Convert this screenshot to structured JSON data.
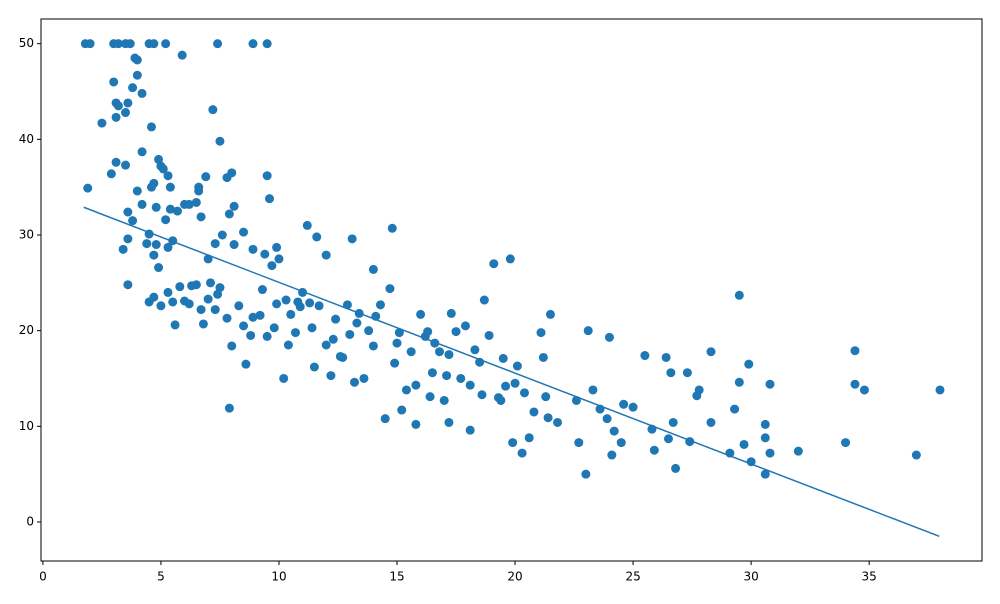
{
  "chart_data": {
    "type": "scatter",
    "xlim": [
      -0.08,
      39.78
    ],
    "ylim": [
      -4.08,
      52.58
    ],
    "xticks": [
      0,
      5,
      10,
      15,
      20,
      25,
      30,
      35
    ],
    "yticks": [
      0,
      10,
      20,
      30,
      40,
      50
    ],
    "series": [
      {
        "type": "scatter",
        "color": "#1f77b4",
        "x": [
          1.8,
          2.0,
          3.0,
          3.2,
          3.5,
          3.7,
          4.5,
          4.7,
          5.2,
          7.4,
          8.9,
          9.5,
          1.9,
          2.5,
          2.9,
          3.0,
          3.1,
          3.1,
          3.2,
          3.1,
          3.4,
          3.5,
          3.5,
          3.6,
          3.6,
          3.6,
          3.6,
          3.8,
          3.8,
          3.9,
          4.0,
          4.0,
          4.0,
          4.2,
          4.2,
          4.2,
          4.4,
          4.5,
          4.6,
          4.6,
          4.7,
          4.8,
          4.9,
          4.7,
          4.8,
          4.9,
          5.0,
          5.1,
          5.2,
          5.3,
          5.4,
          5.3,
          5.5,
          5.4,
          5.9,
          5.7,
          6.0,
          6.2,
          6.5,
          6.6,
          6.6,
          6.7,
          6.9,
          7.2,
          7.5,
          7.8,
          8.0,
          7.9,
          8.1,
          9.5,
          9.6,
          7.0,
          7.3,
          7.6,
          8.1,
          8.5,
          8.9,
          9.4,
          9.9,
          10.0,
          9.7,
          11.2,
          11.6,
          12.0,
          13.1,
          14.8,
          14.0,
          4.5,
          4.7,
          5.0,
          5.3,
          5.5,
          5.6,
          5.8,
          6.2,
          6.5,
          6.8,
          7.0,
          7.3,
          7.5,
          7.8,
          8.0,
          7.9,
          8.6,
          8.5,
          8.8,
          9.2,
          9.5,
          9.9,
          10.2,
          10.4,
          10.5,
          10.8,
          11.0,
          11.4,
          11.5,
          11.7,
          12.0,
          12.2,
          12.4,
          12.6,
          12.9,
          13.0,
          13.2,
          13.4,
          13.6,
          13.8,
          14.0,
          14.3,
          14.5,
          14.7,
          14.9,
          15.0,
          15.2,
          15.4,
          15.6,
          15.8,
          16.0,
          16.2,
          16.4,
          16.5,
          16.8,
          17.0,
          17.2,
          17.3,
          17.5,
          17.7,
          17.9,
          18.1,
          18.3,
          18.6,
          18.7,
          18.9,
          19.1,
          19.4,
          19.6,
          19.8,
          19.9,
          20.1,
          20.3,
          20.6,
          20.8,
          21.1,
          21.3,
          21.4,
          21.5,
          21.8,
          22.6,
          22.7,
          23.0,
          23.1,
          23.3,
          23.6,
          23.9,
          24.0,
          24.1,
          24.2,
          24.5,
          24.6,
          25.0,
          25.5,
          25.8,
          25.9,
          26.4,
          26.5,
          26.6,
          26.7,
          26.8,
          27.3,
          27.4,
          27.7,
          27.8,
          28.3,
          28.3,
          29.1,
          29.3,
          29.5,
          29.5,
          29.7,
          29.9,
          30.0,
          30.6,
          30.6,
          30.6,
          30.8,
          30.8,
          32.0,
          34.0,
          34.4,
          34.4,
          34.8,
          37.0,
          38.0,
          6.0,
          6.3,
          6.7,
          7.1,
          7.4,
          8.3,
          8.9,
          9.3,
          9.8,
          10.3,
          10.7,
          11.3,
          12.3,
          13.3,
          14.1,
          15.1,
          16.3,
          17.2,
          12.7,
          16.6,
          15.8,
          17.1,
          18.1,
          18.5,
          19.3,
          20.0,
          20.4,
          21.2,
          19.5,
          10.9
        ],
        "values": [
          50,
          50,
          50,
          50,
          50,
          50,
          50,
          50,
          50,
          50,
          50,
          50,
          34.9,
          41.7,
          36.4,
          46,
          42.3,
          43.8,
          43.5,
          37.6,
          28.5,
          37.3,
          42.8,
          43.8,
          29.6,
          32.4,
          24.8,
          31.5,
          45.4,
          48.5,
          48.3,
          46.7,
          34.6,
          44.8,
          38.7,
          33.2,
          29.1,
          30.1,
          41.3,
          35,
          35.4,
          32.9,
          37.9,
          27.9,
          29,
          26.6,
          37.2,
          36.9,
          31.6,
          36.2,
          32.7,
          28.7,
          29.4,
          35,
          48.8,
          32.5,
          33.2,
          33.2,
          33.4,
          35,
          34.6,
          31.9,
          36.1,
          43.1,
          39.8,
          36,
          36.5,
          32.2,
          33,
          36.2,
          33.8,
          27.5,
          29.1,
          30,
          29,
          30.3,
          28.5,
          28,
          28.7,
          27.5,
          26.8,
          31,
          29.8,
          27.9,
          29.6,
          30.7,
          26.4,
          23,
          23.5,
          22.6,
          24,
          23,
          20.6,
          24.6,
          22.8,
          24.8,
          20.7,
          23.3,
          22.2,
          24.5,
          21.3,
          18.4,
          11.9,
          16.5,
          20.5,
          19.5,
          21.6,
          19.4,
          22.8,
          15,
          18.5,
          21.7,
          23,
          24,
          20.3,
          16.2,
          22.6,
          18.5,
          15.3,
          21.2,
          17.3,
          22.7,
          19.6,
          14.6,
          21.8,
          15,
          20,
          18.4,
          22.7,
          10.8,
          24.4,
          16.6,
          18.7,
          11.7,
          13.8,
          17.8,
          10.2,
          21.7,
          19.4,
          13.1,
          15.6,
          17.8,
          12.7,
          10.4,
          21.8,
          19.9,
          15,
          20.5,
          9.6,
          18,
          13.3,
          23.2,
          19.5,
          27,
          12.7,
          14.2,
          27.5,
          8.3,
          16.3,
          7.2,
          8.8,
          11.5,
          19.8,
          13.1,
          10.9,
          21.7,
          10.4,
          12.7,
          8.3,
          5,
          20,
          13.8,
          11.8,
          10.8,
          19.3,
          7,
          9.5,
          8.3,
          12.3,
          12,
          17.4,
          9.7,
          7.5,
          17.2,
          8.7,
          15.6,
          10.4,
          5.6,
          15.6,
          8.4,
          13.2,
          13.8,
          10.4,
          17.8,
          7.2,
          11.8,
          23.7,
          14.6,
          8.1,
          16.5,
          6.3,
          10.2,
          5,
          8.8,
          7.2,
          14.4,
          7.4,
          8.3,
          17.9,
          14.4,
          13.8,
          7,
          13.8,
          23.1,
          24.7,
          22.2,
          25,
          23.8,
          22.6,
          21.4,
          24.3,
          20.3,
          23.2,
          19.8,
          22.9,
          19.1,
          20.8,
          21.5,
          19.8,
          19.9,
          17.5,
          17.2,
          18.7,
          14.3,
          15.3,
          14.3,
          16.7,
          13,
          14.5,
          13.5,
          17.2,
          17.1,
          22.5
        ]
      },
      {
        "type": "line",
        "color": "#1f77b4",
        "x": [
          1.73,
          37.97
        ],
        "values": [
          32.9,
          -1.5
        ]
      }
    ]
  }
}
